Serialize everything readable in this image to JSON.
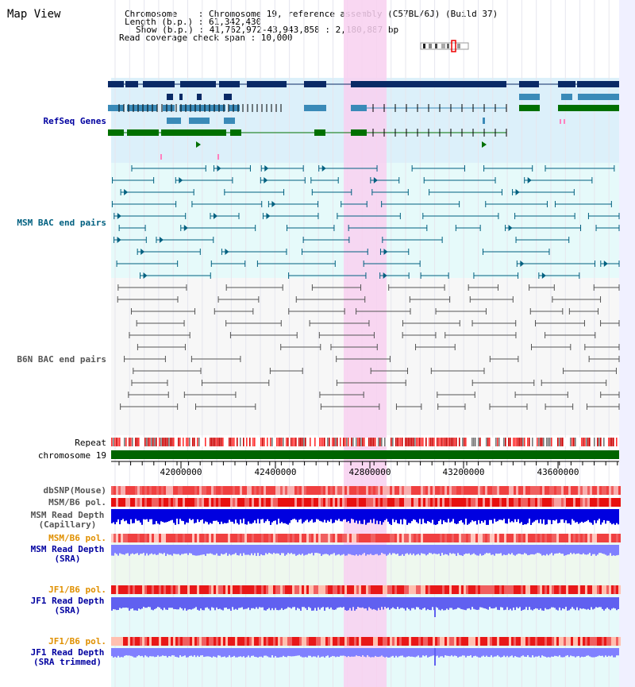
{
  "header": {
    "title": "Map View",
    "chromosome_label": "Chromosome    : Chromosome 19, reference assembly (C57BL/6J) (Build 37)",
    "length_label": "Length (b.p.) : 61,342,430",
    "show_label": "Show (b.p.) : 41,762,972-43,943,858 : 2,180,887 bp",
    "coverage_label": "Read coverage check span : 10,000"
  },
  "tracks": {
    "refseq": "RefSeq Genes",
    "msm_bac": "MSM BAC end pairs",
    "b6n_bac": "B6N BAC end pairs",
    "repeat": "Repeat",
    "chromosome": "chromosome 19",
    "dbsnp": "dbSNP(Mouse)",
    "msm_pol": "MSM/B6 pol.",
    "msm_depth_cap_1": "MSM Read Depth",
    "msm_depth_cap_2": "(Capillary)",
    "msm_pol2": "MSM/B6 pol.",
    "msm_depth_sra_1": "MSM Read Depth",
    "msm_depth_sra_2": "(SRA)",
    "jf1_pol": "JF1/B6 pol.",
    "jf1_depth_1": "JF1 Read Depth",
    "jf1_depth_2": "(SRA)",
    "jf1_pol2": "JF1/B6 pol.",
    "jf1_trim_1": "JF1 Read Depth",
    "jf1_trim_2": "(SRA trimmed)"
  },
  "axis": {
    "ticks": [
      "42000000",
      "42400000",
      "42800000",
      "43200000",
      "43600000"
    ]
  },
  "colors": {
    "refseq_dark": "#0a2a66",
    "refseq_mid": "#3a8ab8",
    "refseq_green": "#007000",
    "msm": "#006080",
    "b6n": "#555555",
    "highlight": "#f8d0f0",
    "label_blue": "#0000a0",
    "label_orange": "#e09000",
    "label_teal": "#006080",
    "label_gray": "#555555"
  }
}
